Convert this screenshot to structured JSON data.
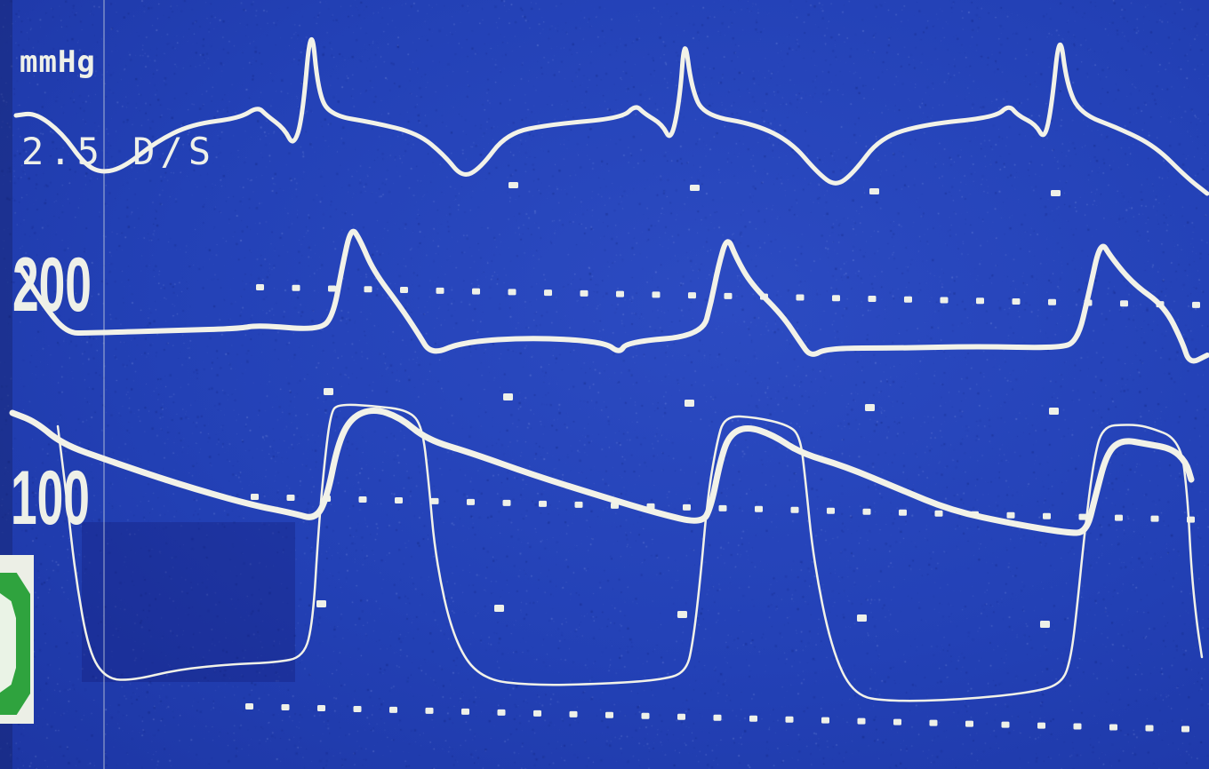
{
  "labels": {
    "unit": "mmHg",
    "speed": "2.5 D/S",
    "scale_high": "200",
    "scale_low": "100"
  },
  "colors": {
    "paper": "#2540b4",
    "trace": "#f2f2e8",
    "tape_green": "#2fa33e"
  }
}
